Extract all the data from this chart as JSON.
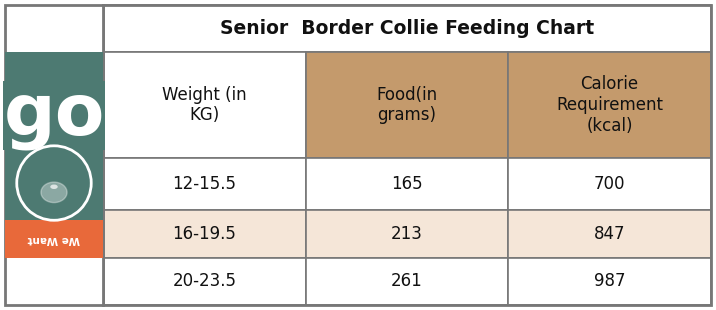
{
  "title": "Senior  Border Collie Feeding Chart",
  "headers": [
    "Weight (in\nKG)",
    "Food(in\ngrams)",
    "Calorie\nRequirement\n(kcal)"
  ],
  "rows": [
    [
      "12-15.5",
      "165",
      "700"
    ],
    [
      "16-19.5",
      "213",
      "847"
    ],
    [
      "20-23.5",
      "261",
      "987"
    ]
  ],
  "header_bg_colors": [
    "#ffffff",
    "#c49a6c",
    "#c49a6c"
  ],
  "row_bg_colors": [
    [
      "#ffffff",
      "#ffffff",
      "#ffffff"
    ],
    [
      "#f5e6d8",
      "#f5e6d8",
      "#f5e6d8"
    ],
    [
      "#ffffff",
      "#ffffff",
      "#ffffff"
    ]
  ],
  "title_bg": "#ffffff",
  "title_fontsize": 13.5,
  "header_fontsize": 12,
  "cell_fontsize": 12,
  "border_color": "#777777",
  "logo_bg_color": "#4d7a72",
  "logo_text_bg": "#e8693a",
  "logo_text": "We Want",
  "fig_width": 7.16,
  "fig_height": 3.1
}
